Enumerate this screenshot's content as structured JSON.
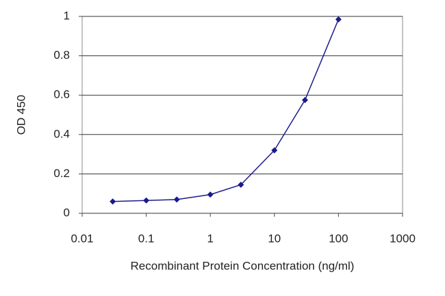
{
  "chart_data": {
    "type": "line",
    "x_label": "Recombinant Protein Concentration (ng/ml)",
    "y_label": "OD 450",
    "x": [
      0.03,
      0.1,
      0.3,
      1,
      3,
      10,
      30,
      100
    ],
    "series": [
      {
        "color": "#1a1a8c",
        "values": [
          0.06,
          0.065,
          0.07,
          0.095,
          0.145,
          0.32,
          0.575,
          0.985
        ]
      }
    ],
    "xlog": true,
    "xlim": [
      0.01,
      1000
    ],
    "xticks": [
      0.01,
      0.1,
      1,
      10,
      100,
      1000
    ],
    "ylim": [
      0,
      1
    ],
    "yticks": [
      0,
      0.2,
      0.4,
      0.6,
      0.8,
      1
    ],
    "grid": true
  }
}
